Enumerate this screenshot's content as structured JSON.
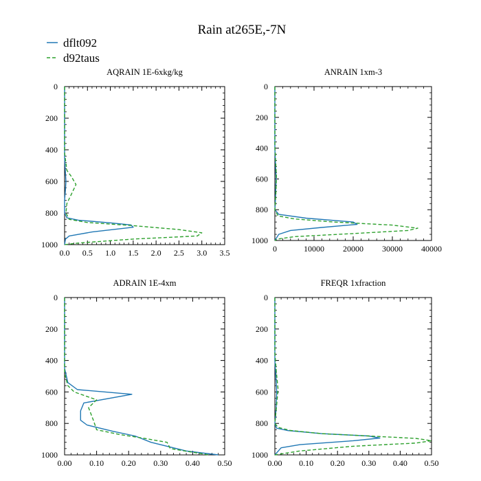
{
  "title": "Rain at265E,-7N",
  "legend": [
    {
      "name": "dflt092",
      "color": "#1f77b4",
      "dash": "solid"
    },
    {
      "name": "d92taus",
      "color": "#2ca02c",
      "dash": "dashed"
    }
  ],
  "chart_data": [
    {
      "type": "line",
      "title": "AQRAIN  1E-6xkg/kg",
      "xlim": [
        0,
        3.5
      ],
      "ylim": [
        1000,
        0
      ],
      "xticks": [
        "0.0",
        "0.5",
        "1.0",
        "1.5",
        "2.0",
        "2.5",
        "3.0",
        "3.5"
      ],
      "yticks": [
        "0",
        "200",
        "400",
        "600",
        "800",
        "1000"
      ],
      "series": [
        {
          "name": "dflt092",
          "color": "#1f77b4",
          "dash": "solid",
          "x": [
            0,
            0,
            0.02,
            0.03,
            0.02,
            0,
            0,
            0.05,
            0.3,
            1.0,
            1.45,
            1.5,
            0.6,
            0.1,
            0.02,
            0
          ],
          "y": [
            0,
            450,
            550,
            600,
            650,
            720,
            800,
            830,
            845,
            862,
            875,
            890,
            920,
            945,
            965,
            1000
          ]
        },
        {
          "name": "d92taus",
          "color": "#2ca02c",
          "dash": "dashed",
          "x": [
            0,
            0,
            0.05,
            0.15,
            0.25,
            0.15,
            0.05,
            0.03,
            0.1,
            0.5,
            1.5,
            2.5,
            3.0,
            2.9,
            1.5,
            0.3,
            0
          ],
          "y": [
            0,
            420,
            530,
            570,
            620,
            680,
            740,
            800,
            840,
            860,
            880,
            905,
            925,
            945,
            965,
            990,
            1000
          ]
        }
      ]
    },
    {
      "type": "line",
      "title": "ANRAIN  1xm-3",
      "xlim": [
        0,
        40000
      ],
      "ylim": [
        1000,
        0
      ],
      "xticks": [
        "0",
        "10000",
        "20000",
        "30000",
        "40000"
      ],
      "yticks": [
        "0",
        "200",
        "400",
        "600",
        "800",
        "1000"
      ],
      "series": [
        {
          "name": "dflt092",
          "color": "#1f77b4",
          "dash": "solid",
          "x": [
            0,
            0,
            150,
            300,
            200,
            100,
            0,
            1000,
            8000,
            20000,
            21000,
            12000,
            4000,
            1000,
            0
          ],
          "y": [
            0,
            400,
            500,
            600,
            700,
            760,
            800,
            830,
            855,
            880,
            895,
            915,
            935,
            960,
            1000
          ]
        },
        {
          "name": "d92taus",
          "color": "#2ca02c",
          "dash": "dashed",
          "x": [
            0,
            0,
            200,
            400,
            300,
            100,
            0,
            800,
            5000,
            15000,
            30000,
            36500,
            34000,
            20000,
            5000,
            800,
            0
          ],
          "y": [
            0,
            380,
            480,
            580,
            680,
            760,
            800,
            840,
            860,
            880,
            900,
            920,
            935,
            955,
            975,
            990,
            1000
          ]
        }
      ]
    },
    {
      "type": "line",
      "title": "ADRAIN  1E-4xm",
      "xlim": [
        0,
        0.5
      ],
      "ylim": [
        1000,
        0
      ],
      "xticks": [
        "0.00",
        "0.10",
        "0.20",
        "0.30",
        "0.40",
        "0.50"
      ],
      "yticks": [
        "0",
        "200",
        "400",
        "600",
        "800",
        "1000"
      ],
      "series": [
        {
          "name": "dflt092",
          "color": "#1f77b4",
          "dash": "solid",
          "x": [
            0,
            0,
            0.01,
            0.04,
            0.21,
            0.06,
            0.05,
            0.05,
            0.07,
            0.15,
            0.22,
            0.27,
            0.38,
            0.48
          ],
          "y": [
            0,
            450,
            540,
            585,
            615,
            670,
            720,
            780,
            810,
            850,
            880,
            920,
            975,
            1000
          ]
        },
        {
          "name": "d92taus",
          "color": "#2ca02c",
          "dash": "dashed",
          "x": [
            0,
            0,
            0.01,
            0.03,
            0.1,
            0.075,
            0.09,
            0.1,
            0.17,
            0.25,
            0.32,
            0.33,
            0.45
          ],
          "y": [
            0,
            480,
            560,
            600,
            650,
            700,
            780,
            840,
            870,
            895,
            920,
            960,
            1000
          ]
        }
      ]
    },
    {
      "type": "line",
      "title": "FREQR  1xfraction",
      "xlim": [
        0,
        0.5
      ],
      "ylim": [
        1000,
        0
      ],
      "xticks": [
        "0.00",
        "0.10",
        "0.20",
        "0.30",
        "0.40",
        "0.50"
      ],
      "yticks": [
        "0",
        "200",
        "400",
        "600",
        "800",
        "1000"
      ],
      "series": [
        {
          "name": "dflt092",
          "color": "#1f77b4",
          "dash": "solid",
          "x": [
            0,
            0,
            0.003,
            0.006,
            0.004,
            0.002,
            0,
            0.005,
            0.04,
            0.15,
            0.3,
            0.335,
            0.25,
            0.08,
            0.02,
            0
          ],
          "y": [
            0,
            400,
            500,
            600,
            700,
            760,
            800,
            830,
            845,
            865,
            880,
            893,
            910,
            935,
            955,
            1000
          ]
        },
        {
          "name": "d92taus",
          "color": "#2ca02c",
          "dash": "dashed",
          "x": [
            0,
            0,
            0.005,
            0.01,
            0.006,
            0.002,
            0,
            0.01,
            0.05,
            0.15,
            0.3,
            0.45,
            0.5,
            0.45,
            0.25,
            0.08,
            0
          ],
          "y": [
            0,
            350,
            480,
            580,
            680,
            760,
            800,
            825,
            845,
            865,
            880,
            895,
            910,
            925,
            945,
            975,
            1000
          ]
        }
      ]
    }
  ]
}
